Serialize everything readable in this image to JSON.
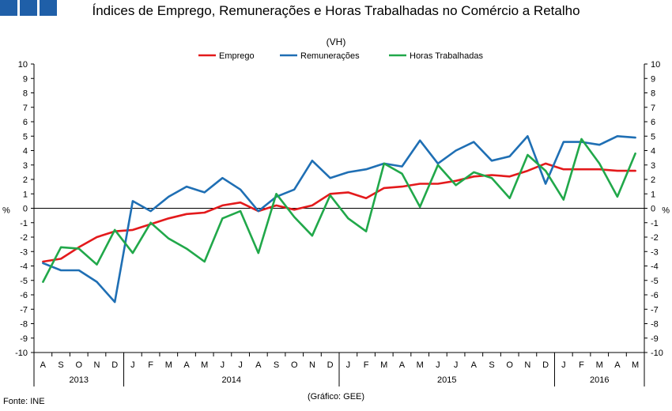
{
  "header": {
    "title": "Índices de Emprego, Remunerações e Horas Trabalhadas no Comércio a Retalho",
    "subtitle": "(VH)"
  },
  "footer": {
    "source": "Fonte: INE",
    "credit": "(Gráfico: GEE)"
  },
  "colors": {
    "logo": "#1f5fa8",
    "emprego": "#e31a1c",
    "remuneracoes": "#1f6fb4",
    "horas": "#21a84a"
  },
  "chart_data": {
    "type": "line",
    "title": "Índices de Emprego, Remunerações e Horas Trabalhadas no Comércio a Retalho",
    "subtitle": "(VH)",
    "ylabel": "%",
    "ylabel_right": "%",
    "ylim": [
      -10,
      10
    ],
    "yticks": [
      10,
      9,
      8,
      7,
      6,
      5,
      4,
      3,
      2,
      1,
      0,
      -1,
      -2,
      -3,
      -4,
      -5,
      -6,
      -7,
      -8,
      -9,
      -10
    ],
    "legend_position": "top-center",
    "categories": [
      "A",
      "S",
      "O",
      "N",
      "D",
      "J",
      "F",
      "M",
      "A",
      "M",
      "J",
      "J",
      "A",
      "S",
      "O",
      "N",
      "D",
      "J",
      "F",
      "M",
      "A",
      "M",
      "J",
      "J",
      "A",
      "S",
      "O",
      "N",
      "D",
      "J",
      "F",
      "M",
      "A",
      "M"
    ],
    "years": [
      {
        "label": "2013",
        "count": 5
      },
      {
        "label": "2014",
        "count": 12
      },
      {
        "label": "2015",
        "count": 12
      },
      {
        "label": "2016",
        "count": 5
      }
    ],
    "series": [
      {
        "name": "Emprego",
        "color": "#e31a1c",
        "values": [
          -3.7,
          -3.5,
          -2.7,
          -2.0,
          -1.6,
          -1.5,
          -1.1,
          -0.7,
          -0.4,
          -0.3,
          0.2,
          0.4,
          -0.2,
          0.2,
          -0.1,
          0.2,
          1.0,
          1.1,
          0.7,
          1.4,
          1.5,
          1.7,
          1.7,
          1.9,
          2.2,
          2.3,
          2.2,
          2.6,
          3.1,
          2.7,
          2.7,
          2.7,
          2.6,
          2.6
        ]
      },
      {
        "name": "Remunerações",
        "color": "#1f6fb4",
        "values": [
          -3.8,
          -4.3,
          -4.3,
          -5.1,
          -6.5,
          0.5,
          -0.2,
          0.8,
          1.5,
          1.1,
          2.1,
          1.3,
          -0.2,
          0.8,
          1.3,
          3.3,
          2.1,
          2.5,
          2.7,
          3.1,
          2.9,
          4.7,
          3.1,
          4.0,
          4.6,
          3.3,
          3.6,
          5.0,
          1.7,
          4.6,
          4.6,
          4.4,
          5.0,
          4.9
        ]
      },
      {
        "name": "Horas Trabalhadas",
        "color": "#21a84a",
        "values": [
          -5.1,
          -2.7,
          -2.8,
          -3.9,
          -1.5,
          -3.1,
          -1.0,
          -2.1,
          -2.8,
          -3.7,
          -0.7,
          -0.2,
          -3.1,
          1.0,
          -0.6,
          -1.9,
          0.9,
          -0.7,
          -1.6,
          3.1,
          2.4,
          0.1,
          3.0,
          1.6,
          2.5,
          2.1,
          0.7,
          3.7,
          2.6,
          0.6,
          4.8,
          3.1,
          0.8,
          3.8
        ]
      }
    ]
  }
}
